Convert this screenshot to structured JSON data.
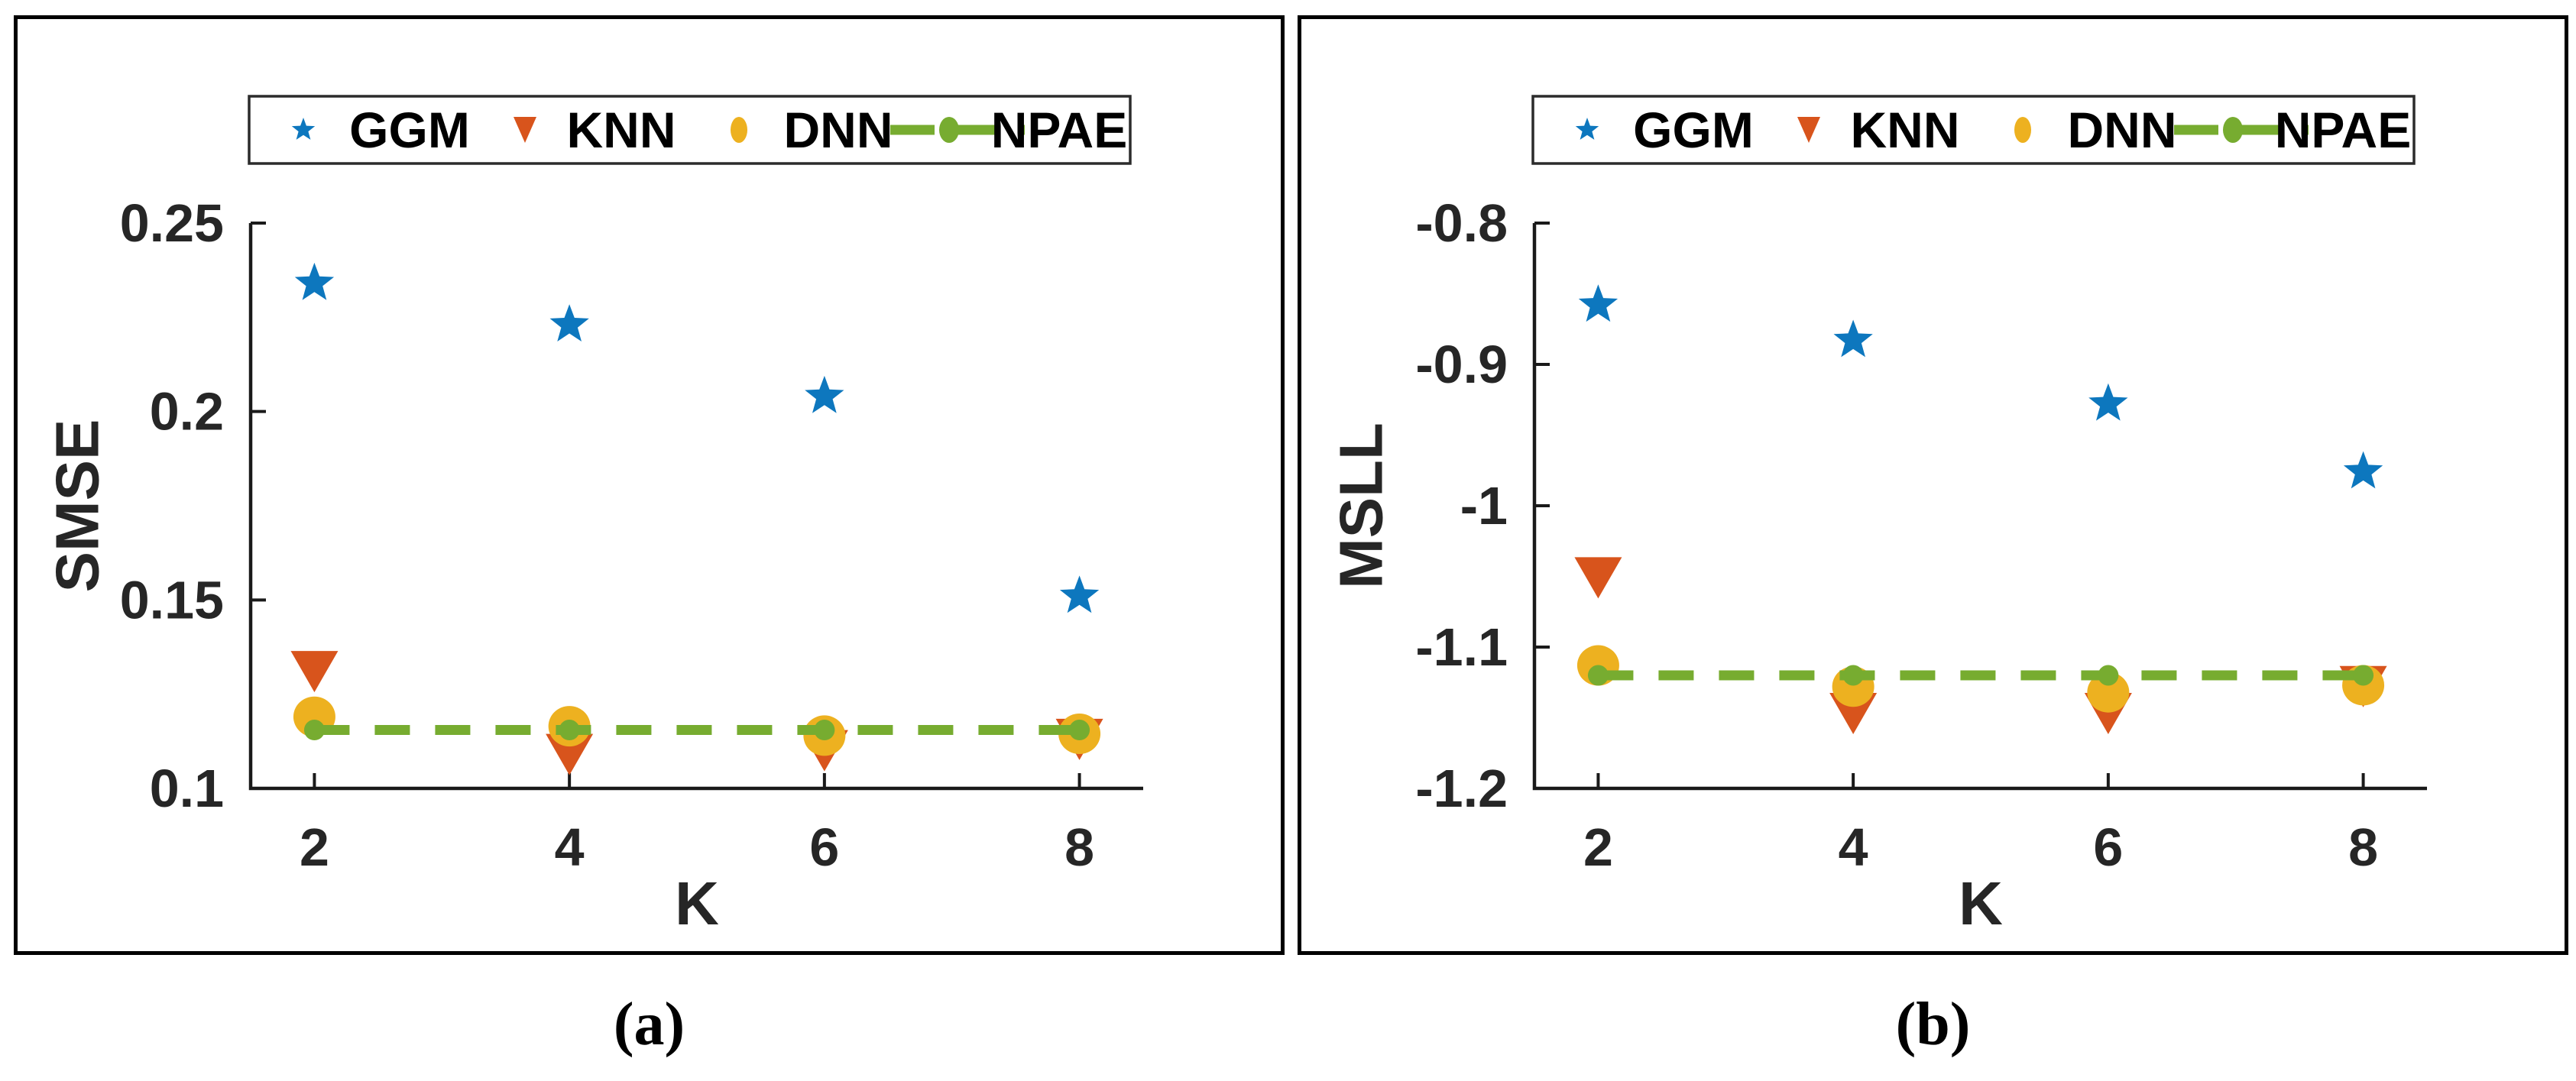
{
  "page": {
    "background": "#ffffff",
    "axis_color": "#1a1a1a",
    "text_color": "#262626"
  },
  "panels": [
    {
      "caption": "(a)",
      "chart_data": {
        "type": "scatter",
        "x": [
          2,
          4,
          6,
          8
        ],
        "xlabel": "K",
        "ylabel": "SMSE",
        "xlim": [
          1.5,
          8.5
        ],
        "ylim": [
          0.1,
          0.25
        ],
        "xticks": [
          2,
          4,
          6,
          8
        ],
        "xtick_labels": [
          "2",
          "4",
          "6",
          "8"
        ],
        "yticks": [
          0.25,
          0.2,
          0.15,
          0.1
        ],
        "ytick_labels": [
          "0.25",
          "0.2",
          "0.15",
          "0.1"
        ],
        "grid": false,
        "legend_position": "top-center-inside-horizontal",
        "series": [
          {
            "name": "GGM",
            "marker": "star",
            "color": "#0d77be",
            "values": [
              0.234,
              0.223,
              0.204,
              0.151
            ]
          },
          {
            "name": "KNN",
            "marker": "triangle-down",
            "color": "#d8541c",
            "values": [
              0.131,
              0.109,
              0.11,
              0.113
            ]
          },
          {
            "name": "DNN",
            "marker": "circle",
            "color": "#edb120",
            "values": [
              0.119,
              0.1165,
              0.114,
              0.1145
            ]
          },
          {
            "name": "NPAE",
            "marker": "dashed-line-dot",
            "color": "#77ac30",
            "values": [
              0.1155,
              0.1155,
              0.1155,
              0.1155
            ]
          }
        ]
      }
    },
    {
      "caption": "(b)",
      "chart_data": {
        "type": "scatter",
        "x": [
          2,
          4,
          6,
          8
        ],
        "xlabel": "K",
        "ylabel": "MSLL",
        "xlim": [
          1.5,
          8.5
        ],
        "ylim": [
          -1.2,
          -0.8
        ],
        "xticks": [
          2,
          4,
          6,
          8
        ],
        "xtick_labels": [
          "2",
          "4",
          "6",
          "8"
        ],
        "yticks": [
          -0.8,
          -0.9,
          -1,
          -1.1,
          -1.2
        ],
        "ytick_labels": [
          "-0.8",
          "-0.9",
          "-1",
          "-1.1",
          "-1.2"
        ],
        "grid": false,
        "legend_position": "top-center-inside-horizontal",
        "series": [
          {
            "name": "GGM",
            "marker": "star",
            "color": "#0d77be",
            "values": [
              -0.858,
              -0.883,
              -0.928,
              -0.976
            ]
          },
          {
            "name": "KNN",
            "marker": "triangle-down",
            "color": "#d8541c",
            "values": [
              -1.051,
              -1.147,
              -1.147,
              -1.128
            ]
          },
          {
            "name": "DNN",
            "marker": "circle",
            "color": "#edb120",
            "values": [
              -1.113,
              -1.128,
              -1.132,
              -1.127
            ]
          },
          {
            "name": "NPAE",
            "marker": "dashed-line-dot",
            "color": "#77ac30",
            "values": [
              -1.12,
              -1.12,
              -1.12,
              -1.12
            ]
          }
        ]
      }
    }
  ]
}
